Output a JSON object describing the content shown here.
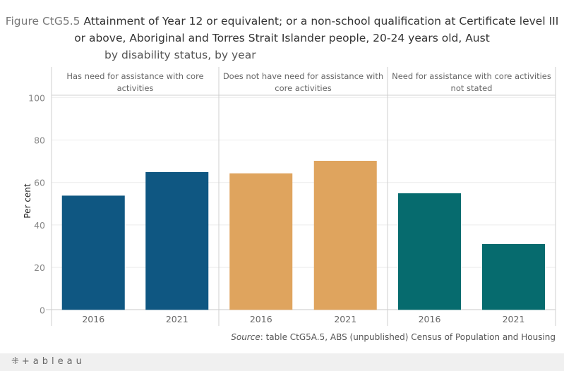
{
  "title": {
    "lead": "Figure CtG5.5 ",
    "main_line1": "Attainment of Year 12 or equivalent; or a non-school qualification at Certificate level III",
    "main_line2": "or above, Aboriginal and Torres Strait Islander people, 20-24 years old, Aust",
    "sub": "by disability status, by year"
  },
  "source": {
    "label": "Source",
    "text": ": table CtG5A.5, ABS (unpublished) Census of Population and Housing"
  },
  "footer": {
    "logo_text": "+ableau",
    "logo_icon": "tableau-logo-icon"
  },
  "chart_data": {
    "type": "bar",
    "title": "Attainment of Year 12 or equivalent; or a non-school qualification at Certificate level III or above, Aboriginal and Torres Strait Islander people, 20-24 years old, Aust by disability status, by year",
    "xlabel": "",
    "ylabel": "Per cent",
    "ylim": [
      0,
      100
    ],
    "yticks": [
      0,
      20,
      40,
      60,
      80,
      100
    ],
    "grid": true,
    "legend": "none",
    "panels": [
      {
        "name": "Has need for assistance with core activities",
        "color": "#0f5782",
        "categories": [
          "2016",
          "2021"
        ],
        "values": [
          53.8,
          64.9
        ]
      },
      {
        "name": "Does not have need for assistance with core activities",
        "color": "#dfa45e",
        "categories": [
          "2016",
          "2021"
        ],
        "values": [
          64.3,
          70.2
        ]
      },
      {
        "name": "Need for assistance with core activities not stated",
        "color": "#066b6e",
        "categories": [
          "2016",
          "2021"
        ],
        "values": [
          54.9,
          31.0
        ]
      }
    ]
  }
}
